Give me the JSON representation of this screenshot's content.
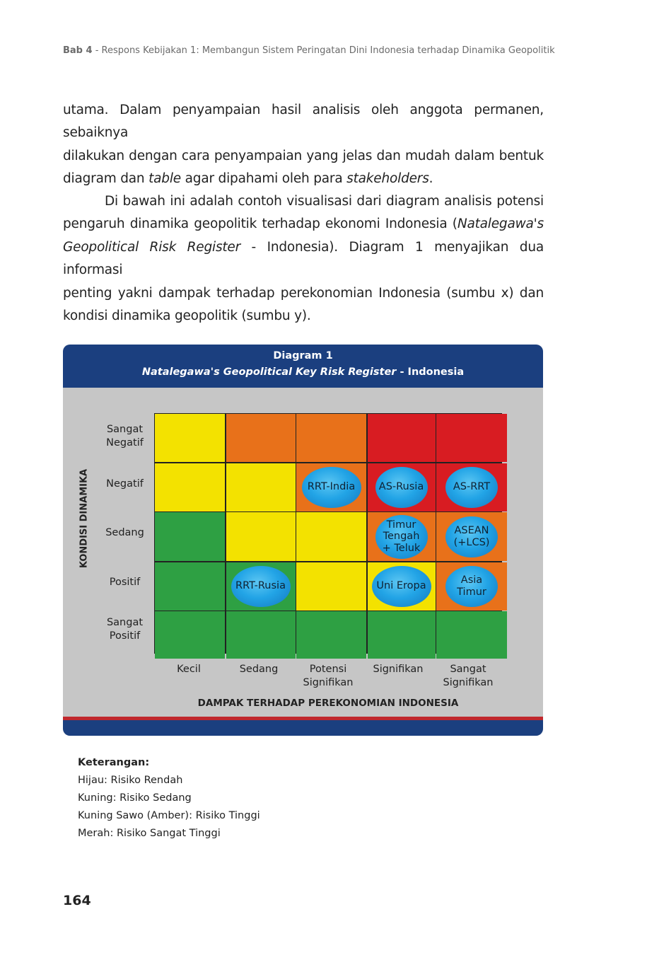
{
  "header": {
    "chapter": "Bab 4",
    "title_rest": " - Respons Kebijakan 1: Membangun Sistem Peringatan Dini Indonesia terhadap Dinamika Geopolitik"
  },
  "para1": {
    "l1": "utama. Dalam penyampaian hasil analisis oleh anggota permanen, sebaiknya",
    "l2": "dilakukan dengan cara penyampaian yang jelas dan mudah dalam bentuk",
    "l3a": "diagram dan ",
    "l3b": "table",
    "l3c": " agar dipahami oleh para ",
    "l3d": "stakeholders",
    "l3e": "."
  },
  "para2": {
    "l1": "Di bawah ini adalah contoh visualisasi dari diagram analisis potensi",
    "l2a": "pengaruh dinamika geopolitik terhadap ekonomi Indonesia (",
    "l2b": "Natalegawa's",
    "l3a": "Geopolitical Risk Register",
    "l3b": " - Indonesia). Diagram 1 menyajikan dua informasi",
    "l4": "penting yakni dampak terhadap perekonomian Indonesia (sumbu x) dan",
    "l5": "kondisi dinamika geopolitik (sumbu y)."
  },
  "diagram": {
    "title": "Diagram 1",
    "subtitle_italic": "Natalegawa's Geopolitical Key Risk Register",
    "subtitle_rest": " - Indonesia",
    "y_axis_title": "KONDISI DINAMIKA",
    "x_axis_title": "DAMPAK TERHADAP PEREKONOMIAN INDONESIA",
    "y_labels": [
      "Sangat\nNegatif",
      "Negatif",
      "Sedang",
      "Positif",
      "Sangat\nPositif"
    ],
    "x_labels": [
      "Kecil",
      "Sedang",
      "Potensi\nSignifikan",
      "Signifikan",
      "Sangat\nSignifikan"
    ],
    "colors": {
      "green": "#2ea043",
      "yellow": "#f3e200",
      "amber": "#e8711a",
      "red": "#d81c22",
      "bubble": "#22a4e6",
      "header": "#1b3f7f"
    },
    "cells": [
      [
        "yellow",
        "amber",
        "amber",
        "red",
        "red"
      ],
      [
        "yellow",
        "yellow",
        "amber",
        "red",
        "red"
      ],
      [
        "green",
        "yellow",
        "yellow",
        "amber",
        "amber"
      ],
      [
        "green",
        "green",
        "yellow",
        "yellow",
        "amber"
      ],
      [
        "green",
        "green",
        "green",
        "green",
        "green"
      ]
    ],
    "bubbles": {
      "rrt_india": "RRT-India",
      "as_rusia": "AS-Rusia",
      "as_rrt": "AS-RRT",
      "timur_tengah": "Timur\nTengah\n+ Teluk",
      "asean": "ASEAN\n(+LCS)",
      "rrt_rusia": "RRT-Rusia",
      "uni_eropa": "Uni Eropa",
      "asia_timur": "Asia\nTimur"
    }
  },
  "legend": {
    "title": "Keterangan:",
    "items": [
      "Hijau: Risiko Rendah",
      "Kuning: Risiko Sedang",
      "Kuning Sawo (Amber): Risiko Tinggi",
      "Merah: Risiko Sangat Tinggi"
    ]
  },
  "page_number": "164"
}
